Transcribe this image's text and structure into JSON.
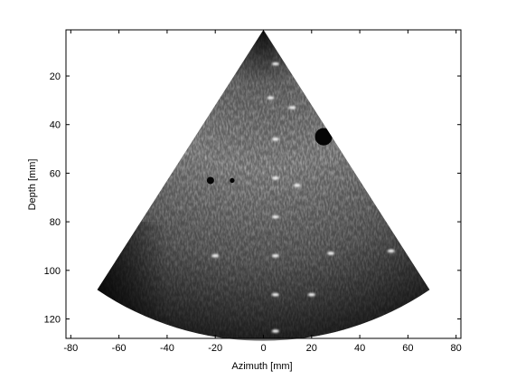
{
  "chart_data": {
    "type": "heatmap",
    "description_of_content": "",
    "xlabel": "Azimuth [mm]",
    "ylabel": "Depth [mm]",
    "xlim": [
      -82,
      82
    ],
    "ylim": [
      128,
      1
    ],
    "y_axis_direction": "down",
    "x_ticks": [
      -80,
      -60,
      -40,
      -20,
      0,
      20,
      40,
      60,
      80
    ],
    "y_ticks": [
      20,
      40,
      60,
      80,
      100,
      120
    ],
    "grid": false,
    "colormap": "gray",
    "sector": {
      "apex": [
        0,
        1
      ],
      "left_edge_end": [
        -69,
        108
      ],
      "right_edge_end": [
        69,
        108
      ],
      "arc_bottom_depth_at_center": 129
    },
    "point_targets": [
      {
        "x": 5,
        "y": 15
      },
      {
        "x": 3,
        "y": 29
      },
      {
        "x": 12,
        "y": 33
      },
      {
        "x": 5,
        "y": 46
      },
      {
        "x": 5,
        "y": 62
      },
      {
        "x": 14,
        "y": 65
      },
      {
        "x": 5,
        "y": 78
      },
      {
        "x": -20,
        "y": 94
      },
      {
        "x": 5,
        "y": 94
      },
      {
        "x": 28,
        "y": 93
      },
      {
        "x": 53,
        "y": 92
      },
      {
        "x": 5,
        "y": 110
      },
      {
        "x": 20,
        "y": 110
      },
      {
        "x": 5,
        "y": 125
      }
    ],
    "cysts": [
      {
        "x": -22,
        "y": 63,
        "r": 1.5
      },
      {
        "x": -13,
        "y": 63,
        "r": 1.0
      },
      {
        "x": 25,
        "y": 45,
        "r": 3.6
      }
    ]
  }
}
